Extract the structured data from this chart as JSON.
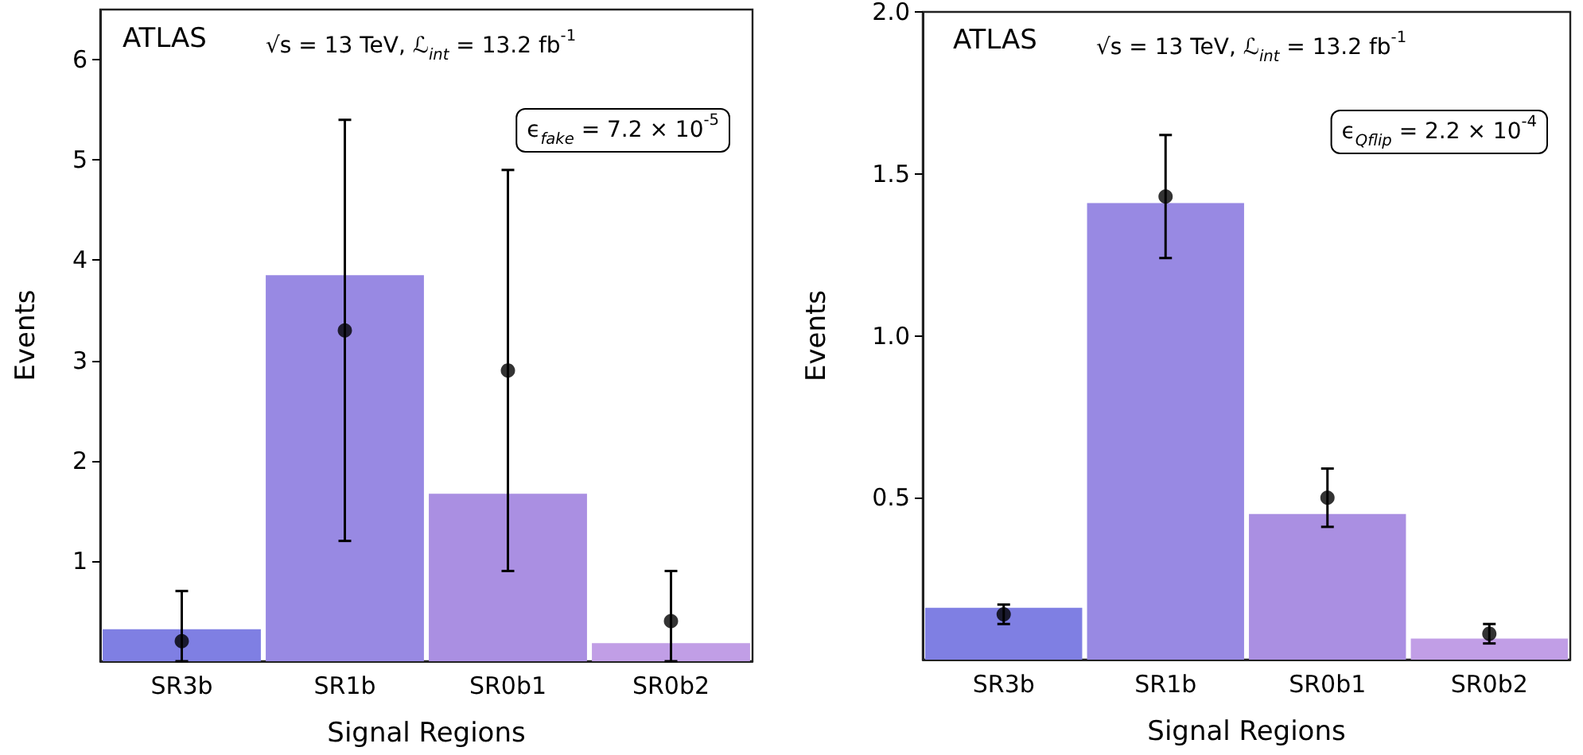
{
  "chart_data": [
    {
      "type": "bar",
      "xlabel": "Signal Regions",
      "ylabel": "Events",
      "categories": [
        "SR3b",
        "SR1b",
        "SR0b1",
        "SR0b2"
      ],
      "ylim": [
        0,
        6.5
      ],
      "yticks": [
        1,
        2,
        3,
        4,
        5,
        6
      ],
      "grid": false,
      "annotations": [
        "ATLAS",
        "√s = 13 TeV, ℒ$_{int}$ = 13.2 fb$^{-1}$",
        "ϵ$_{fake}$ = 7.2 × 10$^{-5}$"
      ],
      "series": [
        {
          "colors": [
            "#7f7fe3",
            "#9889e3",
            "#aa8fe2",
            "#c19ee6"
          ],
          "values": [
            0.32,
            3.85,
            1.67,
            0.18
          ]
        },
        {
          "type": "scatter",
          "x": [
            "SR3b",
            "SR1b",
            "SR0b1",
            "SR0b2"
          ],
          "values": [
            0.2,
            3.3,
            2.9,
            0.4
          ],
          "errors": [
            [
              0,
              0.7
            ],
            [
              1.2,
              5.4
            ],
            [
              0.9,
              4.9
            ],
            [
              0,
              0.9
            ]
          ],
          "color": "#000000",
          "marker": "circle"
        }
      ]
    },
    {
      "type": "bar",
      "xlabel": "Signal Regions",
      "ylabel": "Events",
      "categories": [
        "SR3b",
        "SR1b",
        "SR0b1",
        "SR0b2"
      ],
      "ylim": [
        0,
        2
      ],
      "yticks": [
        0.5,
        {
          "value": 1,
          "label": "1.0"
        },
        1.5,
        {
          "value": 2,
          "label": "2.0"
        }
      ],
      "grid": false,
      "annotations": [
        "ATLAS",
        "√s = 13 TeV, ℒ$_{int}$ = 13.2 fb$^{-1}$",
        "ϵ$_{Qflip}$ = 2.2 × 10$^{-4}$"
      ],
      "series": [
        {
          "colors": [
            "#7f7fe3",
            "#9889e3",
            "#aa8fe2",
            "#c19ee6"
          ],
          "values": [
            0.16,
            1.41,
            0.45,
            0.065
          ]
        },
        {
          "type": "scatter",
          "x": [
            "SR3b",
            "SR1b",
            "SR0b1",
            "SR0b2"
          ],
          "values": [
            0.14,
            1.43,
            0.5,
            0.08
          ],
          "errors": [
            [
              0.11,
              0.17
            ],
            [
              1.24,
              1.62
            ],
            [
              0.41,
              0.59
            ],
            [
              0.05,
              0.11
            ]
          ],
          "color": "#000000",
          "marker": "circle"
        }
      ]
    }
  ]
}
